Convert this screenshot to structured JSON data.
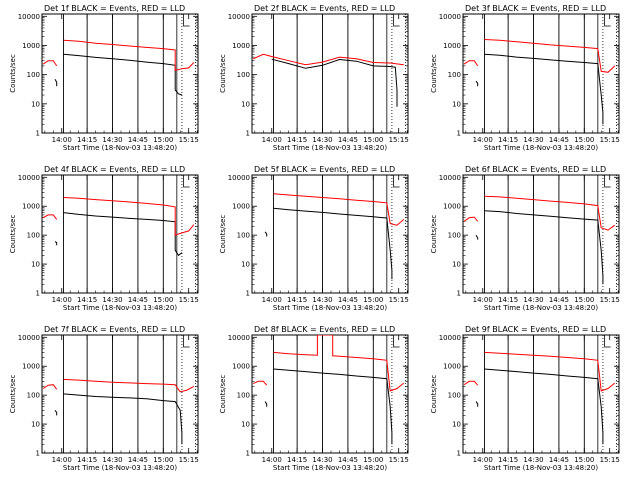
{
  "figure": {
    "shared": {
      "ylabel": "Counts/sec",
      "xlabel": "Start Time (18-Nov-03 13:48:20)",
      "x_tick_labels": [
        "14:00",
        "14:15",
        "14:30",
        "14:45",
        "15:00",
        "15:15"
      ],
      "y_tick_labels": [
        "1",
        "10",
        "100",
        "1000",
        "10000"
      ],
      "colors": {
        "events": "#000000",
        "lld": "#ff0000"
      }
    }
  },
  "chart_data": [
    {
      "type": "line",
      "title": "Det 1f BLACK = Events, RED = LLD",
      "xlabel": "Start Time (18-Nov-03 13:48:20)",
      "ylabel": "Counts/sec",
      "x_ticks": [
        "14:00",
        "14:15",
        "14:30",
        "14:45",
        "15:00",
        "15:15"
      ],
      "ylim": [
        1,
        12000
      ],
      "yscale": "log",
      "series": [
        {
          "name": "Events",
          "color": "#000000",
          "x": [
            "13:56",
            "13:57",
            "13:57",
            "14:01",
            "14:01",
            "14:10",
            "14:20",
            "14:30",
            "14:40",
            "14:50",
            "15:00",
            "15:07",
            "15:07",
            "15:09",
            "15:11"
          ],
          "values": [
            70,
            55,
            40,
            null,
            500,
            450,
            390,
            350,
            310,
            270,
            240,
            210,
            30,
            22,
            20
          ]
        },
        {
          "name": "LLD",
          "color": "#ff0000",
          "x": [
            "13:49",
            "13:52",
            "13:55",
            "13:57",
            "14:01",
            "14:01",
            "14:10",
            "14:20",
            "14:30",
            "14:40",
            "14:50",
            "15:00",
            "15:07",
            "15:07",
            "15:11",
            "15:15",
            "15:18"
          ],
          "values": [
            230,
            300,
            300,
            200,
            null,
            1500,
            1400,
            1200,
            1080,
            960,
            860,
            780,
            700,
            140,
            160,
            170,
            260
          ]
        }
      ]
    },
    {
      "type": "line",
      "title": "Det 2f BLACK = Events, RED = LLD",
      "xlabel": "Start Time (18-Nov-03 13:48:20)",
      "ylabel": "Counts/sec",
      "x_ticks": [
        "14:00",
        "14:15",
        "14:30",
        "14:45",
        "15:00",
        "15:15"
      ],
      "ylim": [
        1,
        12000
      ],
      "yscale": "log",
      "series": [
        {
          "name": "Events",
          "color": "#000000",
          "x": [
            "14:00",
            "14:10",
            "14:20",
            "14:30",
            "14:40",
            "14:50",
            "15:00",
            "15:10",
            "15:13",
            "15:14",
            "15:14"
          ],
          "values": [
            340,
            240,
            165,
            210,
            330,
            290,
            200,
            190,
            180,
            30,
            8
          ]
        },
        {
          "name": "LLD",
          "color": "#ff0000",
          "x": [
            "13:49",
            "13:55",
            "14:00",
            "14:10",
            "14:20",
            "14:30",
            "14:40",
            "14:50",
            "15:00",
            "15:10",
            "15:15",
            "15:18"
          ],
          "values": [
            350,
            500,
            420,
            300,
            220,
            270,
            400,
            350,
            260,
            250,
            230,
            220
          ]
        }
      ]
    },
    {
      "type": "line",
      "title": "Det 3f BLACK = Events, RED = LLD",
      "xlabel": "Start Time (18-Nov-03 13:48:20)",
      "ylabel": "Counts/sec",
      "x_ticks": [
        "14:00",
        "14:15",
        "14:30",
        "14:45",
        "15:00",
        "15:15"
      ],
      "ylim": [
        1,
        12000
      ],
      "yscale": "log",
      "series": [
        {
          "name": "Events",
          "color": "#000000",
          "x": [
            "13:56",
            "13:57",
            "13:57",
            "14:01",
            "14:01",
            "14:10",
            "14:20",
            "14:30",
            "14:40",
            "14:50",
            "15:00",
            "15:08",
            "15:10",
            "15:11",
            "15:11"
          ],
          "values": [
            60,
            50,
            40,
            null,
            500,
            460,
            400,
            360,
            320,
            290,
            260,
            240,
            20,
            5,
            2
          ]
        },
        {
          "name": "LLD",
          "color": "#ff0000",
          "x": [
            "13:49",
            "13:52",
            "13:55",
            "13:57",
            "14:01",
            "14:01",
            "14:10",
            "14:20",
            "14:30",
            "14:40",
            "14:50",
            "15:00",
            "15:08",
            "15:10",
            "15:14",
            "15:18"
          ],
          "values": [
            230,
            300,
            300,
            200,
            null,
            1600,
            1500,
            1350,
            1200,
            1050,
            950,
            860,
            780,
            130,
            120,
            200
          ]
        }
      ]
    },
    {
      "type": "line",
      "title": "Det 4f BLACK = Events, RED = LLD",
      "xlabel": "Start Time (18-Nov-03 13:48:20)",
      "ylabel": "Counts/sec",
      "x_ticks": [
        "14:00",
        "14:15",
        "14:30",
        "14:45",
        "15:00",
        "15:15"
      ],
      "ylim": [
        1,
        12000
      ],
      "yscale": "log",
      "series": [
        {
          "name": "Events",
          "color": "#000000",
          "x": [
            "13:56",
            "13:57",
            "13:57",
            "14:01",
            "14:01",
            "14:10",
            "14:20",
            "14:30",
            "14:40",
            "14:50",
            "15:00",
            "15:07",
            "15:07",
            "15:09",
            "15:11"
          ],
          "values": [
            60,
            55,
            45,
            null,
            600,
            520,
            460,
            420,
            380,
            350,
            320,
            290,
            30,
            20,
            25
          ]
        },
        {
          "name": "LLD",
          "color": "#ff0000",
          "x": [
            "13:49",
            "13:52",
            "13:55",
            "13:57",
            "14:01",
            "14:01",
            "14:10",
            "14:20",
            "14:30",
            "14:40",
            "14:50",
            "15:00",
            "15:07",
            "15:07",
            "15:11",
            "15:15",
            "15:18"
          ],
          "values": [
            400,
            500,
            500,
            350,
            null,
            2000,
            1900,
            1700,
            1550,
            1400,
            1250,
            1100,
            950,
            100,
            120,
            140,
            230
          ]
        }
      ]
    },
    {
      "type": "line",
      "title": "Det 5f BLACK = Events, RED = LLD",
      "xlabel": "Start Time (18-Nov-03 13:48:20)",
      "ylabel": "Counts/sec",
      "x_ticks": [
        "14:00",
        "14:15",
        "14:30",
        "14:45",
        "15:00",
        "15:15"
      ],
      "ylim": [
        1,
        12000
      ],
      "yscale": "log",
      "series": [
        {
          "name": "Events",
          "color": "#000000",
          "x": [
            "13:56",
            "13:57",
            "13:57",
            "14:01",
            "14:01",
            "14:10",
            "14:20",
            "14:30",
            "14:40",
            "14:50",
            "15:00",
            "15:08",
            "15:10",
            "15:11",
            "15:11"
          ],
          "values": [
            130,
            110,
            90,
            null,
            850,
            750,
            680,
            610,
            540,
            480,
            430,
            390,
            30,
            6,
            3
          ]
        },
        {
          "name": "LLD",
          "color": "#ff0000",
          "x": [
            "14:01",
            "14:10",
            "14:20",
            "14:30",
            "14:40",
            "14:50",
            "15:00",
            "15:08",
            "15:10",
            "15:14",
            "15:18"
          ],
          "values": [
            2700,
            2450,
            2200,
            2000,
            1800,
            1600,
            1450,
            1300,
            250,
            220,
            350
          ]
        }
      ]
    },
    {
      "type": "line",
      "title": "Det 6f BLACK = Events, RED = LLD",
      "xlabel": "Start Time (18-Nov-03 13:48:20)",
      "ylabel": "Counts/sec",
      "x_ticks": [
        "14:00",
        "14:15",
        "14:30",
        "14:45",
        "15:00",
        "15:15"
      ],
      "ylim": [
        1,
        12000
      ],
      "yscale": "log",
      "series": [
        {
          "name": "Events",
          "color": "#000000",
          "x": [
            "13:56",
            "13:57",
            "13:57",
            "14:01",
            "14:01",
            "14:10",
            "14:20",
            "14:30",
            "14:40",
            "14:50",
            "15:00",
            "15:08",
            "15:10",
            "15:11",
            "15:11"
          ],
          "values": [
            100,
            80,
            70,
            null,
            700,
            650,
            560,
            500,
            450,
            400,
            360,
            330,
            30,
            4,
            2
          ]
        },
        {
          "name": "LLD",
          "color": "#ff0000",
          "x": [
            "13:49",
            "13:52",
            "13:55",
            "13:57",
            "14:01",
            "14:01",
            "14:10",
            "14:20",
            "14:30",
            "14:40",
            "14:50",
            "15:00",
            "15:08",
            "15:10",
            "15:14",
            "15:18"
          ],
          "values": [
            300,
            400,
            420,
            300,
            null,
            2200,
            2100,
            1900,
            1700,
            1500,
            1350,
            1200,
            1050,
            180,
            150,
            220
          ]
        }
      ]
    },
    {
      "type": "line",
      "title": "Det 7f BLACK = Events, RED = LLD",
      "xlabel": "Start Time (18-Nov-03 13:48:20)",
      "ylabel": "Counts/sec",
      "x_ticks": [
        "14:00",
        "14:15",
        "14:30",
        "14:45",
        "15:00",
        "15:15"
      ],
      "ylim": [
        1,
        12000
      ],
      "yscale": "log",
      "series": [
        {
          "name": "Events",
          "color": "#000000",
          "x": [
            "13:56",
            "13:57",
            "13:57",
            "14:01",
            "14:01",
            "14:10",
            "14:20",
            "14:30",
            "14:40",
            "14:50",
            "15:00",
            "15:07",
            "15:10",
            "15:11",
            "15:11"
          ],
          "values": [
            30,
            25,
            20,
            null,
            110,
            100,
            90,
            85,
            80,
            75,
            65,
            60,
            30,
            5,
            2
          ]
        },
        {
          "name": "LLD",
          "color": "#ff0000",
          "x": [
            "13:49",
            "13:52",
            "13:55",
            "13:57",
            "14:01",
            "14:01",
            "14:10",
            "14:20",
            "14:30",
            "14:40",
            "14:50",
            "15:00",
            "15:07",
            "15:10",
            "15:14",
            "15:18"
          ],
          "values": [
            170,
            220,
            230,
            160,
            null,
            350,
            330,
            300,
            280,
            265,
            250,
            240,
            230,
            130,
            150,
            200
          ]
        }
      ]
    },
    {
      "type": "line",
      "title": "Det 8f BLACK = Events, RED = LLD",
      "xlabel": "Start Time (18-Nov-03 13:48:20)",
      "ylabel": "Counts/sec",
      "x_ticks": [
        "14:00",
        "14:15",
        "14:30",
        "14:45",
        "15:00",
        "15:15"
      ],
      "ylim": [
        1,
        12000
      ],
      "yscale": "log",
      "series": [
        {
          "name": "Events",
          "color": "#000000",
          "x": [
            "13:56",
            "13:57",
            "13:57",
            "14:01",
            "14:01",
            "14:10",
            "14:20",
            "14:30",
            "14:40",
            "14:50",
            "15:00",
            "15:08",
            "15:10",
            "15:11",
            "15:11"
          ],
          "values": [
            60,
            50,
            40,
            null,
            800,
            720,
            650,
            580,
            520,
            460,
            410,
            370,
            40,
            5,
            2
          ]
        },
        {
          "name": "LLD",
          "color": "#ff0000",
          "x": [
            "13:49",
            "13:52",
            "13:55",
            "13:57",
            "14:01",
            "14:01",
            "14:10",
            "14:20",
            "14:27",
            "14:27",
            "14:36",
            "14:36",
            "14:40",
            "14:50",
            "15:00",
            "15:08",
            "15:10",
            "15:14",
            "15:18"
          ],
          "values": [
            250,
            300,
            300,
            220,
            null,
            3000,
            2700,
            2500,
            2400,
            12000,
            12000,
            2300,
            2200,
            2000,
            1800,
            1600,
            140,
            170,
            260
          ]
        }
      ]
    },
    {
      "type": "line",
      "title": "Det 9f BLACK = Events, RED = LLD",
      "xlabel": "Start Time (18-Nov-03 13:48:20)",
      "ylabel": "Counts/sec",
      "x_ticks": [
        "14:00",
        "14:15",
        "14:30",
        "14:45",
        "15:00",
        "15:15"
      ],
      "ylim": [
        1,
        12000
      ],
      "yscale": "log",
      "series": [
        {
          "name": "Events",
          "color": "#000000",
          "x": [
            "13:56",
            "13:57",
            "13:57",
            "14:01",
            "14:01",
            "14:10",
            "14:20",
            "14:30",
            "14:40",
            "14:50",
            "15:00",
            "15:08",
            "15:10",
            "15:11",
            "15:11"
          ],
          "values": [
            60,
            50,
            40,
            null,
            800,
            720,
            650,
            580,
            520,
            460,
            410,
            370,
            40,
            5,
            2
          ]
        },
        {
          "name": "LLD",
          "color": "#ff0000",
          "x": [
            "13:49",
            "13:52",
            "13:55",
            "13:57",
            "14:01",
            "14:01",
            "14:10",
            "14:20",
            "14:30",
            "14:40",
            "14:50",
            "15:00",
            "15:08",
            "15:10",
            "15:14",
            "15:18"
          ],
          "values": [
            230,
            300,
            300,
            220,
            null,
            3000,
            2800,
            2600,
            2400,
            2200,
            2000,
            1800,
            1600,
            140,
            170,
            260
          ]
        }
      ]
    }
  ]
}
